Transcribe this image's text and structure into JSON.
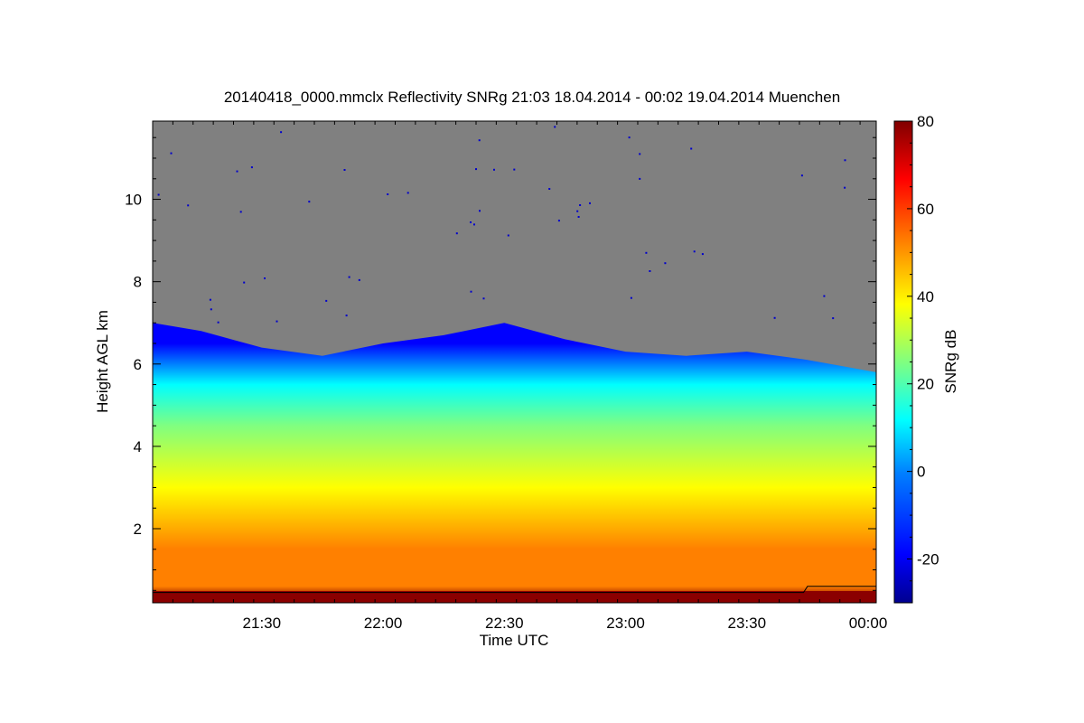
{
  "chart_data": {
    "type": "heatmap",
    "title": "20140418_0000.mmclx Reflectivity SNRg   21:03 18.04.2014 - 00:02 19.04.2014 Muenchen",
    "xlabel": "Time UTC",
    "ylabel": "Height AGL km",
    "x_start": "21:03",
    "x_end": "00:02",
    "x_ticks": [
      "21:30",
      "22:00",
      "22:30",
      "23:00",
      "23:30",
      "00:00"
    ],
    "ylim": [
      0.2,
      11.9
    ],
    "y_ticks": [
      2,
      4,
      6,
      8,
      10
    ],
    "colorbar": {
      "label": "SNRg dB",
      "range": [
        -30,
        80
      ],
      "ticks": [
        -20,
        0,
        20,
        40,
        60,
        80
      ],
      "colors": [
        "#00008f",
        "#0000ff",
        "#0080ff",
        "#00ffff",
        "#80ff80",
        "#ffff00",
        "#ff8000",
        "#ff0000",
        "#800000"
      ]
    },
    "no_signal_color": "#808080",
    "echo_top_km": [
      {
        "time": "21:03",
        "height": 7.0
      },
      {
        "time": "21:15",
        "height": 6.8
      },
      {
        "time": "21:30",
        "height": 6.4
      },
      {
        "time": "21:45",
        "height": 6.2
      },
      {
        "time": "22:00",
        "height": 6.5
      },
      {
        "time": "22:15",
        "height": 6.7
      },
      {
        "time": "22:30",
        "height": 7.0
      },
      {
        "time": "22:45",
        "height": 6.6
      },
      {
        "time": "23:00",
        "height": 6.3
      },
      {
        "time": "23:15",
        "height": 6.2
      },
      {
        "time": "23:30",
        "height": 6.3
      },
      {
        "time": "23:45",
        "height": 6.1
      },
      {
        "time": "00:02",
        "height": 5.8
      }
    ],
    "snr_profile_db": [
      {
        "height": 0.3,
        "snr": 75
      },
      {
        "height": 0.6,
        "snr": 58
      },
      {
        "height": 1.5,
        "snr": 48
      },
      {
        "height": 3.0,
        "snr": 38
      },
      {
        "height": 4.5,
        "snr": 22
      },
      {
        "height": 5.5,
        "snr": 8
      },
      {
        "height": 6.5,
        "snr": -18
      }
    ],
    "surface_line_km": [
      {
        "time": "21:03",
        "height": 0.45
      },
      {
        "time": "23:44",
        "height": 0.45
      },
      {
        "time": "23:45",
        "height": 0.6
      },
      {
        "time": "00:02",
        "height": 0.6
      }
    ]
  }
}
